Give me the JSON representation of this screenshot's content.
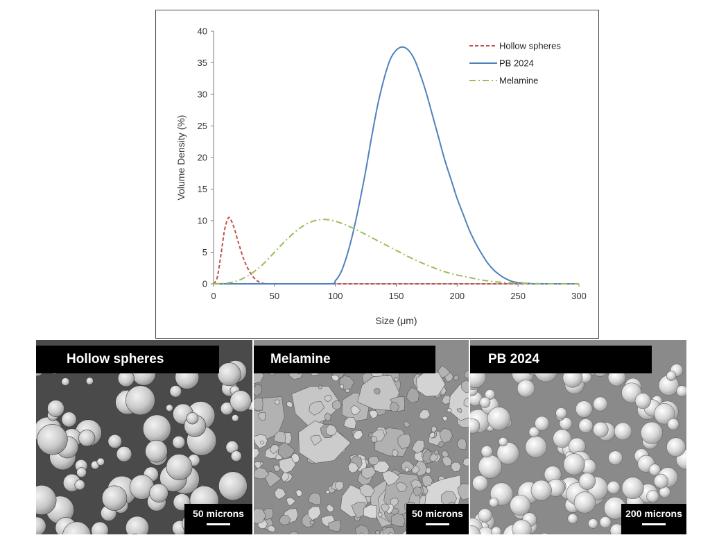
{
  "chart_data": {
    "type": "line",
    "xlabel": "Size (μm)",
    "ylabel": "Volume Density (%)",
    "xlim": [
      0,
      300
    ],
    "ylim": [
      0,
      40
    ],
    "xticks": [
      0,
      50,
      100,
      150,
      200,
      250,
      300
    ],
    "yticks": [
      0,
      5,
      10,
      15,
      20,
      25,
      30,
      35,
      40
    ],
    "grid": false,
    "legend_position": "top-right",
    "series": [
      {
        "name": "Hollow spheres",
        "color": "#c0504d",
        "dash": "dashed",
        "x": [
          0,
          3,
          6,
          9,
          12,
          14,
          17,
          20,
          25,
          30,
          35,
          40,
          45,
          50,
          100,
          150,
          200,
          250,
          300
        ],
        "y": [
          0,
          1.0,
          4.5,
          8.5,
          10.4,
          10.2,
          8.8,
          6.8,
          3.8,
          1.8,
          0.6,
          0.1,
          0,
          0,
          0,
          0,
          0,
          0,
          0
        ]
      },
      {
        "name": "PB 2024",
        "color": "#4f81bd",
        "dash": "solid",
        "x": [
          0,
          50,
          95,
          100,
          105,
          110,
          115,
          120,
          125,
          130,
          135,
          140,
          145,
          150,
          155,
          160,
          165,
          170,
          175,
          180,
          185,
          190,
          195,
          200,
          205,
          210,
          215,
          220,
          225,
          230,
          235,
          240,
          245,
          250,
          255,
          260,
          265,
          300
        ],
        "y": [
          0,
          0,
          0,
          0.5,
          2.0,
          4.8,
          8.5,
          13.0,
          18.0,
          23.5,
          28.5,
          32.5,
          35.5,
          37.0,
          37.5,
          37.0,
          35.5,
          33.0,
          30.0,
          26.5,
          23.0,
          19.5,
          16.5,
          13.5,
          11.0,
          8.5,
          6.5,
          4.8,
          3.3,
          2.2,
          1.4,
          0.8,
          0.4,
          0.2,
          0.1,
          0.05,
          0,
          0
        ]
      },
      {
        "name": "Melamine",
        "color": "#9bbb59",
        "dash": "dashdot",
        "x": [
          0,
          10,
          20,
          30,
          40,
          50,
          60,
          70,
          80,
          90,
          100,
          110,
          120,
          130,
          140,
          150,
          160,
          170,
          180,
          190,
          200,
          210,
          220,
          230,
          240,
          250,
          260,
          270,
          280,
          300
        ],
        "y": [
          0,
          0.1,
          0.5,
          1.5,
          3.0,
          5.0,
          7.0,
          8.7,
          9.8,
          10.2,
          9.9,
          9.2,
          8.3,
          7.3,
          6.3,
          5.3,
          4.3,
          3.4,
          2.6,
          1.9,
          1.4,
          1.0,
          0.6,
          0.35,
          0.2,
          0.1,
          0.05,
          0.02,
          0,
          0
        ]
      }
    ]
  },
  "panels": [
    {
      "label": "Hollow spheres",
      "scale": "50 microns"
    },
    {
      "label": "Melamine",
      "scale": "50 microns"
    },
    {
      "label": "PB 2024",
      "scale": "200 microns"
    }
  ]
}
